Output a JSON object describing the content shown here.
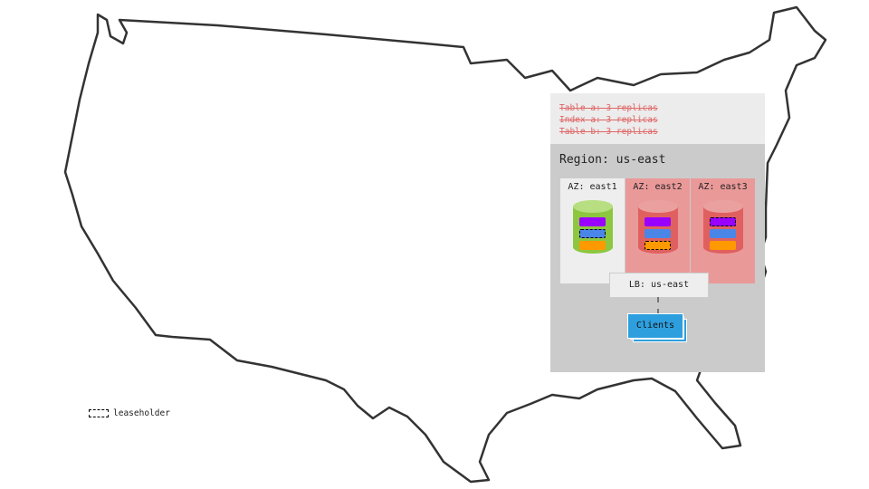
{
  "replicas": [
    "Table a: 3 replicas",
    "Index a: 3 replicas",
    "Table b: 3 replicas"
  ],
  "region": "Region: us-east",
  "azs": [
    {
      "label": "AZ: east1",
      "status": "up",
      "leaseholder": "blue"
    },
    {
      "label": "AZ: east2",
      "status": "down",
      "leaseholder": "orange"
    },
    {
      "label": "AZ: east3",
      "status": "down",
      "leaseholder": "purple"
    }
  ],
  "lb": "LB: us-east",
  "clients": "Clients",
  "legend": "leaseholder",
  "colors": {
    "up_db": "#8dc63f",
    "down_db": "#e06060",
    "down_zone": "#ea9999",
    "range_purple": "#9900ff",
    "range_blue": "#4a86e8",
    "range_orange": "#ff9900",
    "clients": "#2e9fde"
  }
}
